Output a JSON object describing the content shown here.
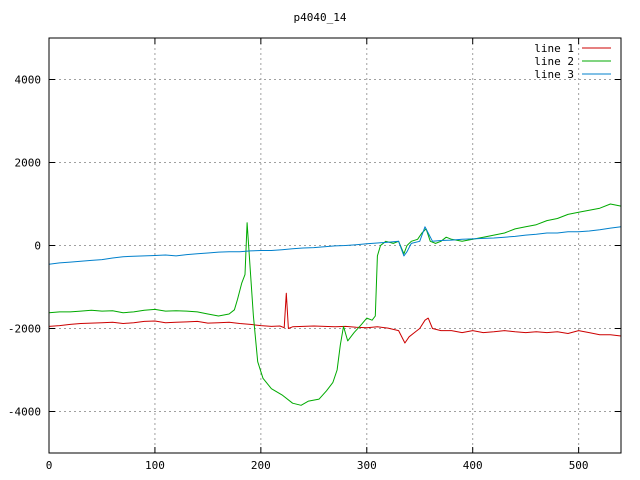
{
  "chart_data": {
    "type": "line",
    "title": "p4040_14",
    "xlabel": "",
    "ylabel": "",
    "xlim": [
      0,
      540
    ],
    "ylim": [
      -5000,
      5000
    ],
    "xticks": [
      0,
      100,
      200,
      300,
      400,
      500
    ],
    "yticks": [
      -4000,
      -2000,
      0,
      2000,
      4000
    ],
    "xtick_labels": [
      "0",
      "100",
      "200",
      "300",
      "400",
      "500"
    ],
    "ytick_labels": [
      "-4000",
      "-2000",
      "0",
      "2000",
      "4000"
    ],
    "grid": true,
    "legend_position": "top-right",
    "series": [
      {
        "name": "line 1",
        "color": "#cc0000",
        "points": [
          [
            0,
            -1950
          ],
          [
            10,
            -1930
          ],
          [
            20,
            -1900
          ],
          [
            30,
            -1880
          ],
          [
            40,
            -1870
          ],
          [
            50,
            -1860
          ],
          [
            60,
            -1850
          ],
          [
            70,
            -1880
          ],
          [
            80,
            -1860
          ],
          [
            90,
            -1830
          ],
          [
            100,
            -1820
          ],
          [
            110,
            -1860
          ],
          [
            120,
            -1850
          ],
          [
            130,
            -1840
          ],
          [
            140,
            -1830
          ],
          [
            150,
            -1870
          ],
          [
            160,
            -1860
          ],
          [
            170,
            -1850
          ],
          [
            180,
            -1880
          ],
          [
            190,
            -1900
          ],
          [
            200,
            -1930
          ],
          [
            210,
            -1950
          ],
          [
            218,
            -1940
          ],
          [
            222,
            -1980
          ],
          [
            224,
            -1150
          ],
          [
            226,
            -2000
          ],
          [
            230,
            -1960
          ],
          [
            240,
            -1950
          ],
          [
            250,
            -1940
          ],
          [
            260,
            -1950
          ],
          [
            270,
            -1960
          ],
          [
            280,
            -1950
          ],
          [
            290,
            -1970
          ],
          [
            300,
            -1980
          ],
          [
            310,
            -1960
          ],
          [
            320,
            -1990
          ],
          [
            330,
            -2050
          ],
          [
            336,
            -2350
          ],
          [
            340,
            -2200
          ],
          [
            345,
            -2100
          ],
          [
            350,
            -2000
          ],
          [
            355,
            -1800
          ],
          [
            358,
            -1750
          ],
          [
            362,
            -2000
          ],
          [
            370,
            -2050
          ],
          [
            380,
            -2050
          ],
          [
            390,
            -2100
          ],
          [
            400,
            -2050
          ],
          [
            410,
            -2100
          ],
          [
            420,
            -2080
          ],
          [
            430,
            -2050
          ],
          [
            440,
            -2080
          ],
          [
            450,
            -2100
          ],
          [
            460,
            -2080
          ],
          [
            470,
            -2100
          ],
          [
            480,
            -2080
          ],
          [
            490,
            -2120
          ],
          [
            500,
            -2050
          ],
          [
            510,
            -2100
          ],
          [
            520,
            -2150
          ],
          [
            530,
            -2150
          ],
          [
            540,
            -2180
          ]
        ]
      },
      {
        "name": "line 2",
        "color": "#00aa00",
        "points": [
          [
            0,
            -1620
          ],
          [
            10,
            -1600
          ],
          [
            20,
            -1600
          ],
          [
            30,
            -1580
          ],
          [
            40,
            -1560
          ],
          [
            50,
            -1580
          ],
          [
            60,
            -1570
          ],
          [
            70,
            -1620
          ],
          [
            80,
            -1600
          ],
          [
            90,
            -1560
          ],
          [
            100,
            -1540
          ],
          [
            110,
            -1580
          ],
          [
            120,
            -1570
          ],
          [
            130,
            -1580
          ],
          [
            140,
            -1600
          ],
          [
            150,
            -1650
          ],
          [
            160,
            -1700
          ],
          [
            170,
            -1650
          ],
          [
            175,
            -1550
          ],
          [
            178,
            -1300
          ],
          [
            182,
            -900
          ],
          [
            185,
            -700
          ],
          [
            187,
            550
          ],
          [
            190,
            -600
          ],
          [
            193,
            -1700
          ],
          [
            197,
            -2800
          ],
          [
            202,
            -3200
          ],
          [
            210,
            -3450
          ],
          [
            220,
            -3600
          ],
          [
            230,
            -3800
          ],
          [
            238,
            -3850
          ],
          [
            245,
            -3750
          ],
          [
            255,
            -3700
          ],
          [
            262,
            -3500
          ],
          [
            268,
            -3300
          ],
          [
            272,
            -3000
          ],
          [
            275,
            -2400
          ],
          [
            278,
            -1950
          ],
          [
            282,
            -2300
          ],
          [
            288,
            -2100
          ],
          [
            295,
            -1900
          ],
          [
            300,
            -1750
          ],
          [
            305,
            -1800
          ],
          [
            308,
            -1700
          ],
          [
            310,
            -250
          ],
          [
            313,
            0
          ],
          [
            318,
            100
          ],
          [
            325,
            50
          ],
          [
            330,
            100
          ],
          [
            335,
            -200
          ],
          [
            338,
            0
          ],
          [
            342,
            100
          ],
          [
            348,
            150
          ],
          [
            352,
            300
          ],
          [
            356,
            400
          ],
          [
            360,
            100
          ],
          [
            365,
            50
          ],
          [
            370,
            100
          ],
          [
            375,
            200
          ],
          [
            380,
            150
          ],
          [
            390,
            100
          ],
          [
            400,
            150
          ],
          [
            410,
            200
          ],
          [
            420,
            250
          ],
          [
            430,
            300
          ],
          [
            440,
            400
          ],
          [
            450,
            450
          ],
          [
            460,
            500
          ],
          [
            470,
            600
          ],
          [
            480,
            650
          ],
          [
            490,
            750
          ],
          [
            500,
            800
          ],
          [
            510,
            850
          ],
          [
            520,
            900
          ],
          [
            530,
            1000
          ],
          [
            540,
            950
          ]
        ]
      },
      {
        "name": "line 3",
        "color": "#0080cc",
        "points": [
          [
            0,
            -450
          ],
          [
            10,
            -420
          ],
          [
            20,
            -400
          ],
          [
            30,
            -380
          ],
          [
            40,
            -360
          ],
          [
            50,
            -340
          ],
          [
            60,
            -300
          ],
          [
            70,
            -270
          ],
          [
            80,
            -260
          ],
          [
            90,
            -250
          ],
          [
            100,
            -240
          ],
          [
            110,
            -230
          ],
          [
            120,
            -250
          ],
          [
            130,
            -220
          ],
          [
            140,
            -200
          ],
          [
            150,
            -180
          ],
          [
            160,
            -160
          ],
          [
            170,
            -150
          ],
          [
            180,
            -150
          ],
          [
            190,
            -130
          ],
          [
            200,
            -120
          ],
          [
            210,
            -120
          ],
          [
            220,
            -100
          ],
          [
            230,
            -80
          ],
          [
            240,
            -60
          ],
          [
            250,
            -50
          ],
          [
            260,
            -30
          ],
          [
            270,
            -10
          ],
          [
            280,
            0
          ],
          [
            290,
            20
          ],
          [
            300,
            40
          ],
          [
            310,
            60
          ],
          [
            320,
            80
          ],
          [
            330,
            100
          ],
          [
            335,
            -250
          ],
          [
            338,
            -150
          ],
          [
            342,
            50
          ],
          [
            350,
            100
          ],
          [
            355,
            450
          ],
          [
            358,
            300
          ],
          [
            362,
            100
          ],
          [
            370,
            120
          ],
          [
            380,
            130
          ],
          [
            390,
            150
          ],
          [
            400,
            160
          ],
          [
            410,
            170
          ],
          [
            420,
            180
          ],
          [
            430,
            200
          ],
          [
            440,
            220
          ],
          [
            450,
            250
          ],
          [
            460,
            270
          ],
          [
            470,
            300
          ],
          [
            480,
            300
          ],
          [
            490,
            330
          ],
          [
            500,
            330
          ],
          [
            510,
            350
          ],
          [
            520,
            380
          ],
          [
            530,
            420
          ],
          [
            540,
            450
          ]
        ]
      }
    ]
  }
}
